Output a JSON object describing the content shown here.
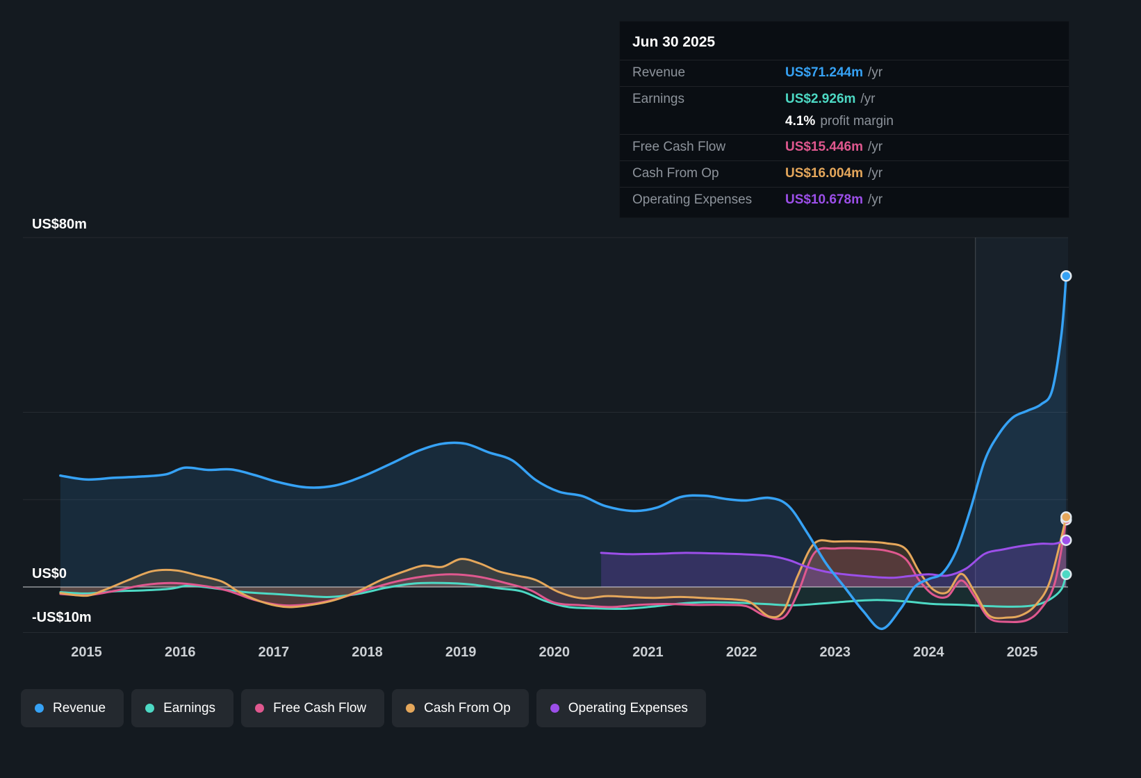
{
  "tooltip": {
    "date": "Jun 30 2025",
    "rows": [
      {
        "label": "Revenue",
        "value": "US$71.244m",
        "unit": "/yr",
        "color": "#36a2f5"
      },
      {
        "label": "Earnings",
        "value": "US$2.926m",
        "unit": "/yr",
        "color": "#4dd9c4"
      },
      {
        "label": "",
        "value": "4.1%",
        "unit": "profit margin",
        "color": "#ffffff"
      },
      {
        "label": "Free Cash Flow",
        "value": "US$15.446m",
        "unit": "/yr",
        "color": "#e0588f"
      },
      {
        "label": "Cash From Op",
        "value": "US$16.004m",
        "unit": "/yr",
        "color": "#e5a75b"
      },
      {
        "label": "Operating Expenses",
        "value": "US$10.678m",
        "unit": "/yr",
        "color": "#9c4fe9"
      }
    ]
  },
  "y_axis": {
    "labels": [
      {
        "value": 80,
        "label": "US$80m"
      },
      {
        "value": 0,
        "label": "US$0"
      },
      {
        "value": -10,
        "label": "-US$10m"
      }
    ]
  },
  "x_axis": {
    "years": [
      2015,
      2016,
      2017,
      2018,
      2019,
      2020,
      2021,
      2022,
      2023,
      2024,
      2025
    ]
  },
  "legend": {
    "items": [
      {
        "label": "Revenue",
        "color": "#36a2f5"
      },
      {
        "label": "Earnings",
        "color": "#4dd9c4"
      },
      {
        "label": "Free Cash Flow",
        "color": "#e0588f"
      },
      {
        "label": "Cash From Op",
        "color": "#e5a75b"
      },
      {
        "label": "Operating Expenses",
        "color": "#9c4fe9"
      }
    ]
  },
  "chart_data": {
    "type": "line",
    "title": "Company earnings and revenue history (US$ millions per year)",
    "unit": "US$m",
    "x_domain": [
      2014.32,
      2025.49
    ],
    "y_domain": [
      -10.5,
      80
    ],
    "gridlines": [
      80,
      40,
      20
    ],
    "zero_line": 0,
    "divider_x": 2024.5,
    "series": [
      {
        "name": "Revenue",
        "color": "#36a2f5",
        "line_width": 3.5,
        "fill_opacity": 0.13,
        "z": 5,
        "points": [
          [
            2014.72,
            25.5
          ],
          [
            2015.0,
            24.6
          ],
          [
            2015.3,
            25.0
          ],
          [
            2015.6,
            25.3
          ],
          [
            2015.85,
            25.8
          ],
          [
            2016.05,
            27.3
          ],
          [
            2016.3,
            26.8
          ],
          [
            2016.55,
            26.9
          ],
          [
            2016.8,
            25.6
          ],
          [
            2017.05,
            24.0
          ],
          [
            2017.35,
            22.8
          ],
          [
            2017.65,
            23.2
          ],
          [
            2017.95,
            25.3
          ],
          [
            2018.25,
            28.2
          ],
          [
            2018.55,
            31.2
          ],
          [
            2018.8,
            32.8
          ],
          [
            2019.05,
            32.8
          ],
          [
            2019.3,
            30.8
          ],
          [
            2019.55,
            29.0
          ],
          [
            2019.8,
            24.5
          ],
          [
            2020.05,
            21.8
          ],
          [
            2020.3,
            20.8
          ],
          [
            2020.55,
            18.5
          ],
          [
            2020.85,
            17.4
          ],
          [
            2021.1,
            18.2
          ],
          [
            2021.35,
            20.6
          ],
          [
            2021.6,
            20.9
          ],
          [
            2021.85,
            20.1
          ],
          [
            2022.05,
            19.8
          ],
          [
            2022.3,
            20.4
          ],
          [
            2022.5,
            18.6
          ],
          [
            2022.7,
            12.5
          ],
          [
            2022.9,
            5.5
          ],
          [
            2023.1,
            0.0
          ],
          [
            2023.3,
            -5.5
          ],
          [
            2023.5,
            -9.6
          ],
          [
            2023.7,
            -5.0
          ],
          [
            2023.85,
            0.0
          ],
          [
            2024.0,
            1.8
          ],
          [
            2024.15,
            3.2
          ],
          [
            2024.3,
            8.5
          ],
          [
            2024.45,
            18.0
          ],
          [
            2024.6,
            29.0
          ],
          [
            2024.75,
            35.0
          ],
          [
            2024.9,
            38.8
          ],
          [
            2025.05,
            40.3
          ],
          [
            2025.2,
            41.8
          ],
          [
            2025.32,
            45.0
          ],
          [
            2025.42,
            58.0
          ],
          [
            2025.47,
            71.2
          ]
        ]
      },
      {
        "name": "Earnings",
        "color": "#4dd9c4",
        "line_width": 3,
        "fill_opacity": 0.1,
        "z": 1,
        "points": [
          [
            2014.72,
            -1.2
          ],
          [
            2015.0,
            -1.5
          ],
          [
            2015.3,
            -1.0
          ],
          [
            2015.6,
            -0.8
          ],
          [
            2015.9,
            -0.4
          ],
          [
            2016.1,
            0.3
          ],
          [
            2016.4,
            -0.4
          ],
          [
            2016.7,
            -1.2
          ],
          [
            2017.0,
            -1.6
          ],
          [
            2017.3,
            -2.0
          ],
          [
            2017.6,
            -2.3
          ],
          [
            2017.9,
            -1.6
          ],
          [
            2018.2,
            -0.2
          ],
          [
            2018.5,
            0.8
          ],
          [
            2018.8,
            0.9
          ],
          [
            2019.1,
            0.6
          ],
          [
            2019.4,
            -0.3
          ],
          [
            2019.65,
            -1.0
          ],
          [
            2019.9,
            -3.2
          ],
          [
            2020.15,
            -4.6
          ],
          [
            2020.45,
            -4.9
          ],
          [
            2020.75,
            -5.0
          ],
          [
            2021.05,
            -4.5
          ],
          [
            2021.35,
            -3.8
          ],
          [
            2021.65,
            -3.5
          ],
          [
            2021.95,
            -3.6
          ],
          [
            2022.25,
            -3.9
          ],
          [
            2022.55,
            -4.2
          ],
          [
            2022.85,
            -3.8
          ],
          [
            2023.15,
            -3.3
          ],
          [
            2023.45,
            -3.0
          ],
          [
            2023.75,
            -3.3
          ],
          [
            2024.05,
            -3.9
          ],
          [
            2024.35,
            -4.1
          ],
          [
            2024.65,
            -4.4
          ],
          [
            2024.95,
            -4.5
          ],
          [
            2025.15,
            -4.1
          ],
          [
            2025.3,
            -2.8
          ],
          [
            2025.42,
            -0.5
          ],
          [
            2025.47,
            2.9
          ]
        ]
      },
      {
        "name": "Free Cash Flow",
        "color": "#e0588f",
        "line_width": 3,
        "fill_opacity": 0.18,
        "z": 2,
        "points": [
          [
            2014.72,
            -1.6
          ],
          [
            2015.0,
            -1.9
          ],
          [
            2015.3,
            -0.9
          ],
          [
            2015.6,
            0.4
          ],
          [
            2015.9,
            0.9
          ],
          [
            2016.2,
            0.4
          ],
          [
            2016.5,
            -0.8
          ],
          [
            2016.8,
            -3.0
          ],
          [
            2017.1,
            -4.2
          ],
          [
            2017.4,
            -3.9
          ],
          [
            2017.7,
            -2.6
          ],
          [
            2018.0,
            -0.6
          ],
          [
            2018.3,
            1.2
          ],
          [
            2018.6,
            2.4
          ],
          [
            2018.9,
            2.9
          ],
          [
            2019.2,
            2.3
          ],
          [
            2019.5,
            0.8
          ],
          [
            2019.75,
            -0.8
          ],
          [
            2020.0,
            -3.6
          ],
          [
            2020.3,
            -4.2
          ],
          [
            2020.6,
            -4.6
          ],
          [
            2020.9,
            -4.1
          ],
          [
            2021.2,
            -3.9
          ],
          [
            2021.5,
            -4.1
          ],
          [
            2021.8,
            -4.1
          ],
          [
            2022.05,
            -4.4
          ],
          [
            2022.25,
            -6.6
          ],
          [
            2022.45,
            -7.0
          ],
          [
            2022.6,
            -1.5
          ],
          [
            2022.78,
            7.8
          ],
          [
            2023.0,
            8.8
          ],
          [
            2023.3,
            8.8
          ],
          [
            2023.55,
            8.3
          ],
          [
            2023.75,
            6.5
          ],
          [
            2023.9,
            1.5
          ],
          [
            2024.05,
            -1.8
          ],
          [
            2024.2,
            -2.2
          ],
          [
            2024.35,
            1.5
          ],
          [
            2024.5,
            -2.5
          ],
          [
            2024.65,
            -7.2
          ],
          [
            2024.85,
            -8.0
          ],
          [
            2025.05,
            -7.6
          ],
          [
            2025.2,
            -5.0
          ],
          [
            2025.35,
            1.0
          ],
          [
            2025.47,
            15.4
          ]
        ]
      },
      {
        "name": "Cash From Op",
        "color": "#e5a75b",
        "line_width": 3,
        "fill_opacity": 0.17,
        "z": 3,
        "points": [
          [
            2014.72,
            -1.4
          ],
          [
            2015.0,
            -2.0
          ],
          [
            2015.2,
            -0.6
          ],
          [
            2015.45,
            1.6
          ],
          [
            2015.7,
            3.6
          ],
          [
            2015.95,
            3.8
          ],
          [
            2016.2,
            2.6
          ],
          [
            2016.45,
            1.2
          ],
          [
            2016.65,
            -1.4
          ],
          [
            2016.9,
            -3.6
          ],
          [
            2017.15,
            -4.6
          ],
          [
            2017.4,
            -4.1
          ],
          [
            2017.65,
            -3.0
          ],
          [
            2017.9,
            -1.0
          ],
          [
            2018.15,
            1.6
          ],
          [
            2018.4,
            3.6
          ],
          [
            2018.6,
            4.9
          ],
          [
            2018.8,
            4.6
          ],
          [
            2019.0,
            6.4
          ],
          [
            2019.2,
            5.4
          ],
          [
            2019.4,
            3.6
          ],
          [
            2019.6,
            2.6
          ],
          [
            2019.8,
            1.6
          ],
          [
            2020.05,
            -1.2
          ],
          [
            2020.3,
            -2.6
          ],
          [
            2020.55,
            -2.1
          ],
          [
            2020.8,
            -2.3
          ],
          [
            2021.05,
            -2.5
          ],
          [
            2021.35,
            -2.3
          ],
          [
            2021.65,
            -2.6
          ],
          [
            2021.95,
            -2.9
          ],
          [
            2022.1,
            -3.6
          ],
          [
            2022.3,
            -6.8
          ],
          [
            2022.45,
            -5.5
          ],
          [
            2022.6,
            2.5
          ],
          [
            2022.78,
            10.0
          ],
          [
            2023.0,
            10.4
          ],
          [
            2023.3,
            10.4
          ],
          [
            2023.55,
            10.0
          ],
          [
            2023.75,
            8.8
          ],
          [
            2023.9,
            3.5
          ],
          [
            2024.05,
            -0.6
          ],
          [
            2024.2,
            -1.2
          ],
          [
            2024.35,
            3.0
          ],
          [
            2024.5,
            -1.5
          ],
          [
            2024.65,
            -6.6
          ],
          [
            2024.85,
            -7.0
          ],
          [
            2025.0,
            -6.4
          ],
          [
            2025.15,
            -4.0
          ],
          [
            2025.3,
            1.5
          ],
          [
            2025.47,
            16.0
          ]
        ]
      },
      {
        "name": "Operating Expenses",
        "color": "#9c4fe9",
        "line_width": 3,
        "fill_opacity": 0.22,
        "z": 4,
        "points": [
          [
            2020.5,
            7.8
          ],
          [
            2020.8,
            7.5
          ],
          [
            2021.1,
            7.6
          ],
          [
            2021.4,
            7.8
          ],
          [
            2021.7,
            7.7
          ],
          [
            2022.0,
            7.5
          ],
          [
            2022.3,
            7.1
          ],
          [
            2022.5,
            6.2
          ],
          [
            2022.7,
            4.6
          ],
          [
            2022.9,
            3.5
          ],
          [
            2023.1,
            2.9
          ],
          [
            2023.35,
            2.4
          ],
          [
            2023.6,
            2.1
          ],
          [
            2023.8,
            2.5
          ],
          [
            2024.0,
            2.9
          ],
          [
            2024.2,
            2.6
          ],
          [
            2024.4,
            4.2
          ],
          [
            2024.6,
            7.6
          ],
          [
            2024.8,
            8.6
          ],
          [
            2025.0,
            9.4
          ],
          [
            2025.2,
            9.9
          ],
          [
            2025.35,
            9.9
          ],
          [
            2025.47,
            10.7
          ]
        ]
      }
    ]
  }
}
